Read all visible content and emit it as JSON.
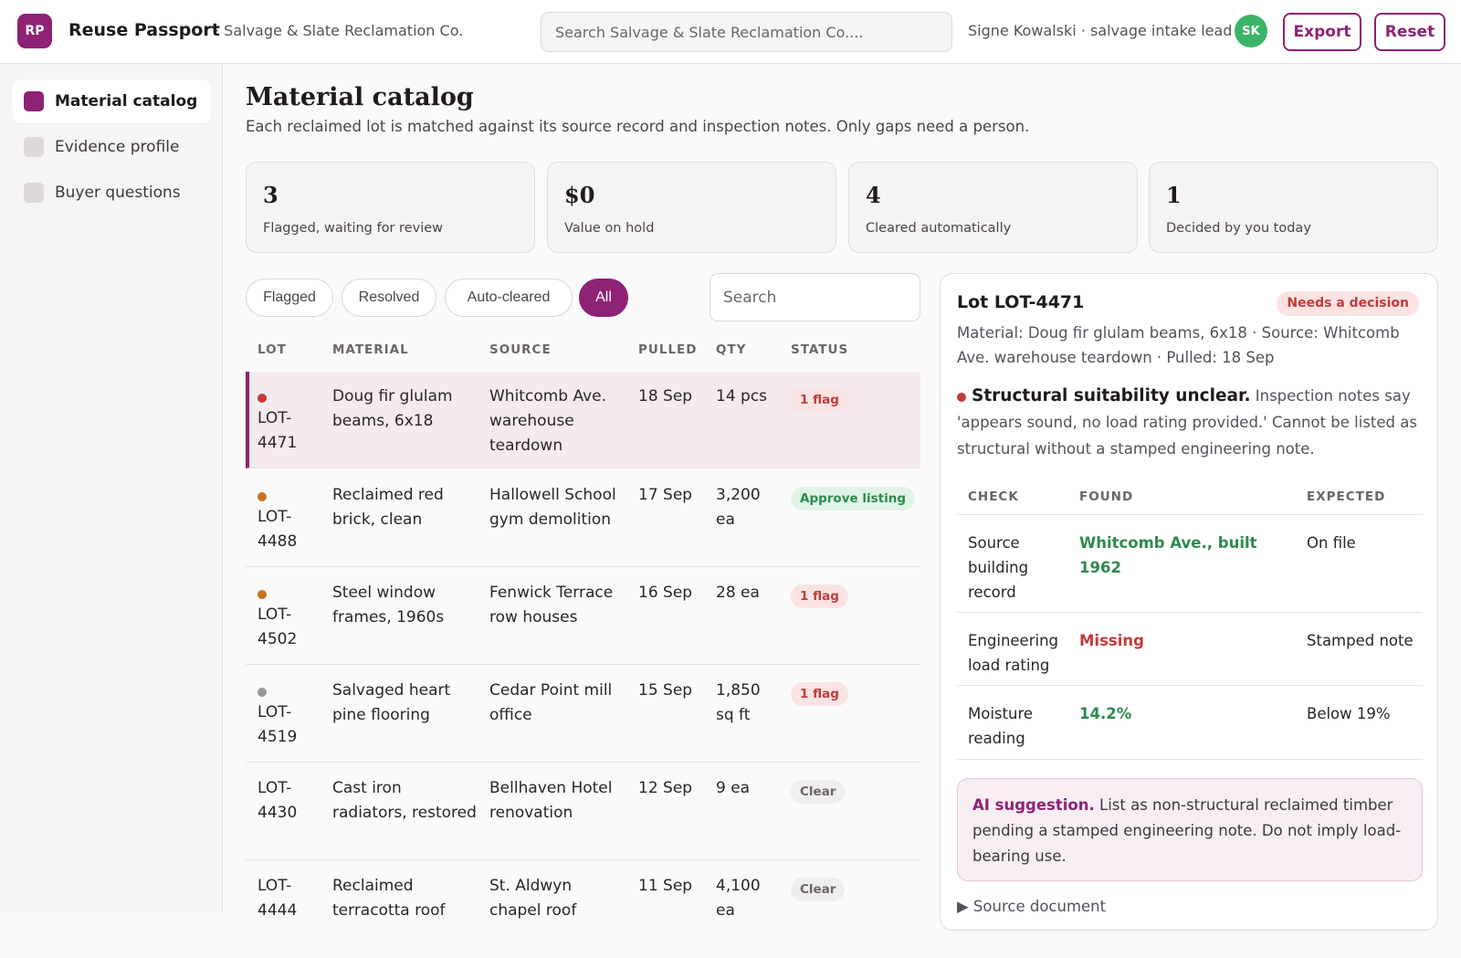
{
  "header": {
    "logo_text": "RP",
    "app_title": "Reuse Passport",
    "org": "· Salvage & Slate Reclamation Co.",
    "search_placeholder": "Search Salvage & Slate Reclamation Co....",
    "user": "Signe Kowalski · salvage intake lead",
    "avatar": "SK",
    "export_label": "Export",
    "reset_label": "Reset"
  },
  "sidebar": {
    "items": [
      {
        "label": "Material catalog",
        "active": true
      },
      {
        "label": "Evidence profile",
        "active": false
      },
      {
        "label": "Buyer questions",
        "active": false
      }
    ]
  },
  "main": {
    "title": "Material catalog",
    "subtitle": "Each reclaimed lot is matched against its source record and inspection notes. Only gaps need a person."
  },
  "stats": [
    {
      "value": "3",
      "label": "Flagged, waiting for review"
    },
    {
      "value": "$0",
      "label": "Value on hold"
    },
    {
      "value": "4",
      "label": "Cleared automatically"
    },
    {
      "value": "1",
      "label": "Decided by you today"
    }
  ],
  "filters": {
    "chips": [
      "Flagged",
      "Resolved",
      "Auto-cleared",
      "All"
    ],
    "active": "All",
    "search_placeholder": "Search"
  },
  "table": {
    "headers": [
      "LOT",
      "MATERIAL",
      "SOURCE",
      "PULLED",
      "QTY",
      "STATUS"
    ],
    "rows": [
      {
        "lot": "LOT-4471",
        "material": "Doug fir glulam beams, 6x18",
        "source": "Whitcomb Ave. warehouse teardown",
        "pulled": "18 Sep",
        "qty": "14 pcs",
        "status": "1 flag",
        "dot_color": "#c13b3b"
      },
      {
        "lot": "LOT-4488",
        "material": "Reclaimed red brick, clean",
        "source": "Hallowell School gym demolition",
        "pulled": "17 Sep",
        "qty": "3,200 ea",
        "status": "Approve listing",
        "dot_color": "#c8741f"
      },
      {
        "lot": "LOT-4502",
        "material": "Steel window frames, 1960s",
        "source": "Fenwick Terrace row houses",
        "pulled": "16 Sep",
        "qty": "28 ea",
        "status": "1 flag",
        "dot_color": "#c8741f"
      },
      {
        "lot": "LOT-4519",
        "material": "Salvaged heart pine flooring",
        "source": "Cedar Point mill office",
        "pulled": "15 Sep",
        "qty": "1,850 sq ft",
        "status": "1 flag",
        "dot_color": "#9a969a"
      },
      {
        "lot": "LOT-4430",
        "material": "Cast iron radiators, restored",
        "source": "Bellhaven Hotel renovation",
        "pulled": "12 Sep",
        "qty": "9 ea",
        "status": "Clear",
        "dot_color": ""
      },
      {
        "lot": "LOT-4444",
        "material": "Reclaimed terracotta roof",
        "source": "St. Aldwyn chapel roof",
        "pulled": "11 Sep",
        "qty": "4,100 ea",
        "status": "Clear",
        "dot_color": ""
      }
    ]
  },
  "detail": {
    "title": "Lot LOT-4471",
    "badge": "Needs a decision",
    "meta": "Material: Doug fir glulam beams, 6x18 · Source: Whitcomb Ave. warehouse teardown · Pulled: 18 Sep",
    "issue_title": "Structural suitability unclear.",
    "issue_text": "Inspection notes say 'appears sound, no load rating provided.' Cannot be listed as structural without a stamped engineering note.",
    "check_headers": [
      "CHECK",
      "FOUND",
      "EXPECTED"
    ],
    "checks": [
      {
        "check": "Source building record",
        "found": "Whitcomb Ave., built 1962",
        "expected": "On file",
        "state": "ok"
      },
      {
        "check": "Engineering load rating",
        "found": "Missing",
        "expected": "Stamped note",
        "state": "bad"
      },
      {
        "check": "Moisture reading",
        "found": "14.2%",
        "expected": "Below 19%",
        "state": "ok"
      }
    ],
    "ai_label": "AI suggestion.",
    "ai_text": "List as non-structural reclaimed timber pending a stamped engineering note. Do not imply load-bearing use.",
    "source_doc": "▶ Source document"
  },
  "colors": {
    "accent": "#8e2275",
    "ok": "#2e8a4e",
    "bad": "#c13b3b",
    "avatar": "#3bb36a"
  }
}
